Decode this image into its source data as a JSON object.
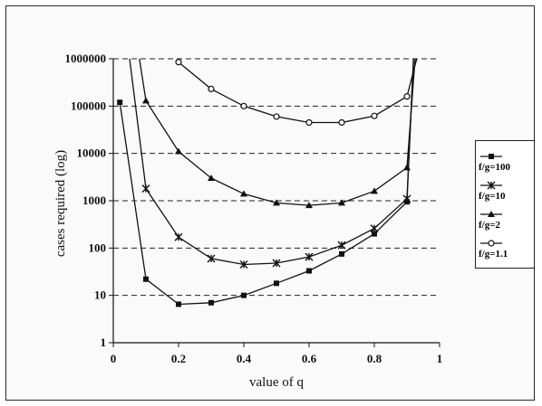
{
  "chart_data": {
    "type": "line",
    "xlabel": "value of q",
    "ylabel": "cases required (log)",
    "y_scale": "log",
    "xlim": [
      0,
      1
    ],
    "ylim": [
      1,
      1000000
    ],
    "x_ticks": [
      "0",
      "0.2",
      "0.4",
      "0.6",
      "0.8",
      "1"
    ],
    "y_ticks": [
      "1",
      "10",
      "100",
      "1000",
      "10000",
      "100000",
      "1000000"
    ],
    "grid": "horizontal dashed at decades",
    "legend_position": "right",
    "series": [
      {
        "name": "f/g=100",
        "marker": "square",
        "x": [
          0.02,
          0.1,
          0.2,
          0.3,
          0.4,
          0.5,
          0.6,
          0.7,
          0.8,
          0.9,
          0.92
        ],
        "y": [
          120000,
          22,
          6.5,
          7,
          10,
          18,
          33,
          75,
          200,
          950,
          1000000
        ]
      },
      {
        "name": "f/g=10",
        "marker": "asterisk",
        "x": [
          0.05,
          0.1,
          0.2,
          0.3,
          0.4,
          0.5,
          0.6,
          0.7,
          0.8,
          0.9,
          0.92
        ],
        "y": [
          1000000,
          1800,
          170,
          60,
          45,
          48,
          65,
          115,
          260,
          1100,
          1000000
        ]
      },
      {
        "name": "f/g=2",
        "marker": "triangle",
        "x": [
          0.08,
          0.1,
          0.2,
          0.3,
          0.4,
          0.5,
          0.6,
          0.7,
          0.8,
          0.9,
          0.925
        ],
        "y": [
          1000000,
          130000,
          11000,
          3000,
          1400,
          900,
          800,
          900,
          1600,
          5000,
          1000000
        ]
      },
      {
        "name": "f/g=1.1",
        "marker": "circle",
        "x": [
          0.2,
          0.3,
          0.4,
          0.5,
          0.6,
          0.7,
          0.8,
          0.9,
          0.93
        ],
        "y": [
          850000,
          230000,
          100000,
          60000,
          45000,
          45000,
          62000,
          160000,
          1000000
        ]
      }
    ]
  }
}
